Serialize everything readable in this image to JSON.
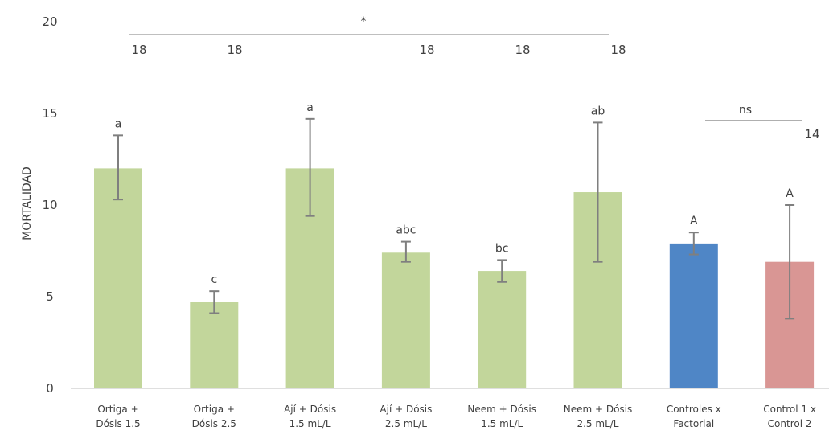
{
  "chart_data": {
    "type": "bar",
    "ylabel": "MORTALIDAD",
    "xlabel": "",
    "title": "",
    "ylim": [
      0,
      20
    ],
    "yticks": [
      0,
      5,
      10,
      15,
      20
    ],
    "grid": false,
    "categories": [
      [
        "Ortiga +",
        "Dósis 1.5"
      ],
      [
        "Ortiga +",
        "Dósis 2.5"
      ],
      [
        "Ají + Dósis",
        "1.5 mL/L"
      ],
      [
        "Ají + Dósis",
        "2.5 mL/L"
      ],
      [
        "Neem + Dósis",
        "1.5 mL/L"
      ],
      [
        "Neem + Dósis",
        "2.5 mL/L"
      ],
      [
        "Controles x",
        "Factorial"
      ],
      [
        "Control 1 x",
        "Control 2"
      ]
    ],
    "values": [
      12.0,
      4.7,
      12.0,
      7.4,
      6.4,
      10.7,
      7.9,
      6.9
    ],
    "error_low": [
      10.3,
      4.1,
      9.4,
      6.9,
      5.8,
      6.9,
      7.3,
      3.8
    ],
    "error_high": [
      13.8,
      5.3,
      14.7,
      8.0,
      7.0,
      14.5,
      8.5,
      10.0
    ],
    "colors": [
      "#c2d69b",
      "#c2d69b",
      "#c2d69b",
      "#c2d69b",
      "#c2d69b",
      "#c2d69b",
      "#4f86c6",
      "#d99694"
    ],
    "significance_letters": [
      "a",
      "c",
      "a",
      "abc",
      "bc",
      "ab",
      "A",
      "A"
    ],
    "brackets": [
      {
        "label": "*",
        "value": 19.3,
        "n_labels": [
          "18",
          "18",
          "18",
          "18",
          "18"
        ]
      },
      {
        "label": "ns",
        "value": 14.6,
        "n_labels": [
          "14"
        ]
      }
    ]
  }
}
